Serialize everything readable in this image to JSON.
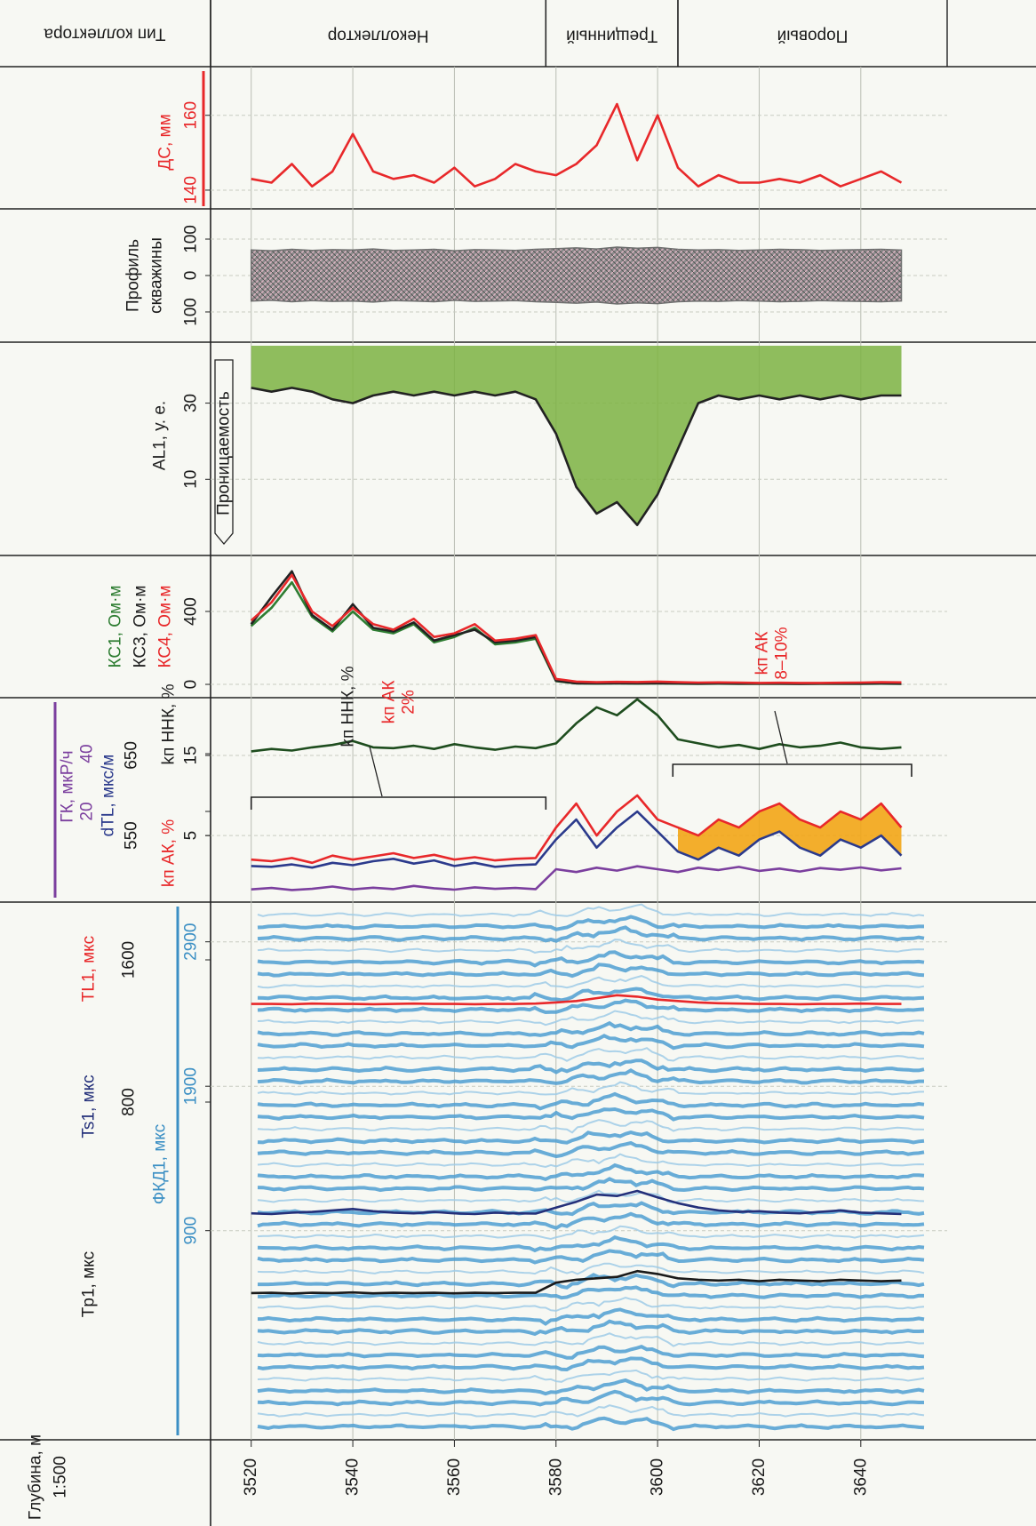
{
  "chart_data": {
    "type": "well-log",
    "depth_label": "Глубина, м",
    "scale": "1:500",
    "xlim": [
      3512,
      3657
    ],
    "xticks": [
      3520,
      3540,
      3560,
      3580,
      3600,
      3620,
      3640
    ],
    "grid": true,
    "x": [
      3520,
      3524,
      3528,
      3532,
      3536,
      3540,
      3544,
      3548,
      3552,
      3556,
      3560,
      3564,
      3568,
      3572,
      3576,
      3580,
      3584,
      3588,
      3592,
      3596,
      3600,
      3604,
      3608,
      3612,
      3616,
      3620,
      3624,
      3628,
      3632,
      3636,
      3640,
      3644,
      3648
    ],
    "collector_type": {
      "title": "Тип коллектора",
      "zones": [
        {
          "label": "Неколлектор",
          "range": [
            3512,
            3578
          ]
        },
        {
          "label": "Трещинный",
          "range": [
            3578,
            3604
          ]
        },
        {
          "label": "Поровый",
          "range": [
            3604,
            3657
          ]
        }
      ]
    },
    "tracks": [
      {
        "type": "line",
        "ylim": [
          135,
          173
        ],
        "yticks": [
          140,
          160
        ],
        "tick_color": "#e8282a",
        "series": [
          {
            "name": "ДС, мм",
            "color": "#e8282a",
            "values": [
              143,
              142,
              147,
              141,
              145,
              155,
              145,
              143,
              144,
              142,
              146,
              141,
              143,
              147,
              145,
              144,
              147,
              152,
              163,
              148,
              160,
              146,
              141,
              144,
              142,
              142,
              143,
              142,
              144,
              141,
              143,
              145,
              142
            ]
          }
        ]
      },
      {
        "type": "band",
        "title_lines": [
          "Профиль",
          "скважины"
        ],
        "ylim": [
          -183,
          183
        ],
        "yticks": [
          {
            "value": -100,
            "label": "100"
          },
          0,
          100
        ],
        "series": [
          {
            "color": "#6f6f6f",
            "values": [
              70,
              68,
              72,
              69,
              71,
              70,
              73,
              69,
              70,
              72,
              68,
              71,
              70,
              69,
              72,
              74,
              76,
              73,
              78,
              75,
              77,
              72,
              70,
              71,
              69,
              70,
              72,
              71,
              69,
              70,
              71,
              72,
              70
            ]
          }
        ]
      },
      {
        "type": "area",
        "ylim": [
          -10,
          46
        ],
        "yticks": [
          10,
          30
        ],
        "annotation": "Проницаемость",
        "series": [
          {
            "name": "AL1, у. е.",
            "color": "#222222",
            "fill": "#7cb342",
            "values": [
              34,
              33,
              34,
              33,
              31,
              30,
              32,
              33,
              32,
              33,
              32,
              33,
              32,
              33,
              31,
              22,
              8,
              1,
              4,
              -2,
              6,
              18,
              30,
              32,
              31,
              32,
              31,
              32,
              31,
              32,
              31,
              32,
              32
            ]
          }
        ]
      },
      {
        "type": "line",
        "ylim": [
          -73,
          707
        ],
        "yticks": [
          0,
          400
        ],
        "series": [
          {
            "name": "КС1, Ом·м",
            "color": "#2e7d32",
            "values": [
              320,
              420,
              560,
              370,
              290,
              400,
              300,
              280,
              330,
              230,
              260,
              310,
              220,
              230,
              250,
              18,
              5,
              4,
              5,
              4,
              5,
              4,
              3,
              4,
              3,
              3,
              3,
              3,
              3,
              3,
              3,
              4,
              3
            ]
          },
          {
            "name": "КС3, Ом·м",
            "color": "#222222",
            "values": [
              330,
              480,
              620,
              380,
              300,
              440,
              310,
              290,
              340,
              240,
              270,
              300,
              230,
              240,
              260,
              20,
              6,
              5,
              6,
              5,
              6,
              5,
              4,
              5,
              4,
              4,
              4,
              3,
              4,
              4,
              4,
              5,
              4
            ]
          },
          {
            "name": "КС4, Ом·м",
            "color": "#e8282a",
            "values": [
              350,
              450,
              600,
              400,
              320,
              420,
              330,
              300,
              360,
              260,
              280,
              330,
              240,
              250,
              270,
              30,
              15,
              12,
              14,
              13,
              15,
              12,
              10,
              11,
              10,
              8,
              9,
              8,
              8,
              9,
              10,
              12,
              11
            ]
          }
        ]
      },
      {
        "type": "line",
        "ylim": [
          -3.3,
          22.2
        ],
        "yticks": [
          5,
          15
        ],
        "y2lim": [
          -11.4,
          59.4
        ],
        "y2ticks": [
          20,
          40
        ],
        "y2_color": "#7b3f9e",
        "y3lim": [
          467,
          722
        ],
        "y3ticks": [
          550,
          650
        ],
        "fill_between": {
          "from": 3604,
          "color": "#f2a516"
        },
        "brackets": [
          [
            3520,
            3578
          ],
          [
            3603,
            3650
          ]
        ],
        "annotations": [
          {
            "lines": [
              "kп ННК, %"
            ],
            "color": "#222222"
          },
          {
            "lines": [
              "kп АК",
              "2%"
            ],
            "color": "#e8282a"
          },
          {
            "lines": [
              "kп АК",
              "8–10%"
            ],
            "color": "#e8282a"
          }
        ],
        "series": [
          {
            "name": "kп АК, %",
            "color": "#e8282a",
            "values": [
              2,
              1.8,
              2.2,
              1.6,
              2.5,
              2,
              2.4,
              2.8,
              2.2,
              2.6,
              2,
              2.3,
              1.9,
              2.1,
              2.2,
              6,
              9,
              5,
              8,
              10,
              7,
              6,
              5,
              7,
              6,
              8,
              9,
              7,
              6,
              8,
              7,
              9,
              6
            ]
          },
          {
            "name": "dTL, мкс/м",
            "color": "#2b3a8c",
            "axis": "y3",
            "values": [
              512,
              511,
              514,
              510,
              516,
              513,
              518,
              521,
              515,
              519,
              512,
              516,
              511,
              513,
              514,
              545,
              570,
              535,
              560,
              580,
              555,
              530,
              520,
              535,
              525,
              545,
              555,
              535,
              525,
              545,
              535,
              550,
              525
            ]
          },
          {
            "name": "kп ННК, %",
            "color": "#1e4d1e",
            "label_color": "#222222",
            "values": [
              15.5,
              15.8,
              15.6,
              16,
              16.3,
              16.8,
              16,
              15.9,
              16.2,
              15.8,
              16.4,
              16,
              15.7,
              16.1,
              15.9,
              16.5,
              19,
              21,
              20,
              22,
              20,
              17,
              16.5,
              16,
              16.3,
              15.8,
              16.4,
              16,
              16.2,
              16.6,
              16,
              15.8,
              16
            ]
          },
          {
            "name": "ГК, мкР/ч",
            "color": "#7b3f9e",
            "axis": "y2",
            "values": [
              -7,
              -6.5,
              -7.2,
              -6.8,
              -6,
              -7,
              -6.4,
              -6.9,
              -5.8,
              -6.6,
              -7.1,
              -6.3,
              -6.8,
              -6.5,
              -6.9,
              0,
              -1,
              0.5,
              -0.5,
              1,
              0,
              -1,
              0.5,
              -0.3,
              0.8,
              -0.6,
              0.2,
              -0.8,
              0.4,
              -0.2,
              0.6,
              -0.4,
              0.3
            ]
          }
        ]
      },
      {
        "type": "waveform",
        "axis_label": "ФКД1, мкс",
        "axis_color": "#3b8fc4",
        "ylim": [
          -548,
          3175
        ],
        "yticks": [
          900,
          1900,
          2900
        ],
        "y2lim": [
          -1100,
          1925
        ],
        "y2ticks": [
          800,
          1600
        ],
        "series": [
          {
            "name": "Tp1, мкс",
            "color": "#1a1a1a",
            "values": [
              468,
              470,
              465,
              470,
              468,
              472,
              466,
              470,
              468,
              470,
              466,
              470,
              468,
              470,
              470,
              540,
              560,
              570,
              580,
              620,
              600,
              570,
              560,
              555,
              560,
              550,
              560,
              555,
              550,
              560,
              555,
              550,
              555
            ]
          },
          {
            "name": "Ts1, мкс",
            "color": "#24307a",
            "values": [
              1020,
              1015,
              1025,
              1030,
              1040,
              1050,
              1035,
              1025,
              1020,
              1030,
              1020,
              1015,
              1025,
              1020,
              1018,
              1060,
              1100,
              1150,
              1140,
              1175,
              1130,
              1090,
              1060,
              1040,
              1030,
              1035,
              1025,
              1020,
              1030,
              1040,
              1025,
              1020,
              1015
            ]
          },
          {
            "name": "TL1, мкс",
            "color": "#e8282a",
            "values": [
              2470,
              2470,
              2468,
              2472,
              2470,
              2470,
              2468,
              2470,
              2472,
              2470,
              2470,
              2468,
              2470,
              2470,
              2472,
              2480,
              2490,
              2510,
              2530,
              2520,
              2500,
              2490,
              2480,
              2475,
              2472,
              2470,
              2470,
              2468,
              2470,
              2470,
              2472,
              2470,
              2470
            ]
          }
        ]
      }
    ]
  }
}
